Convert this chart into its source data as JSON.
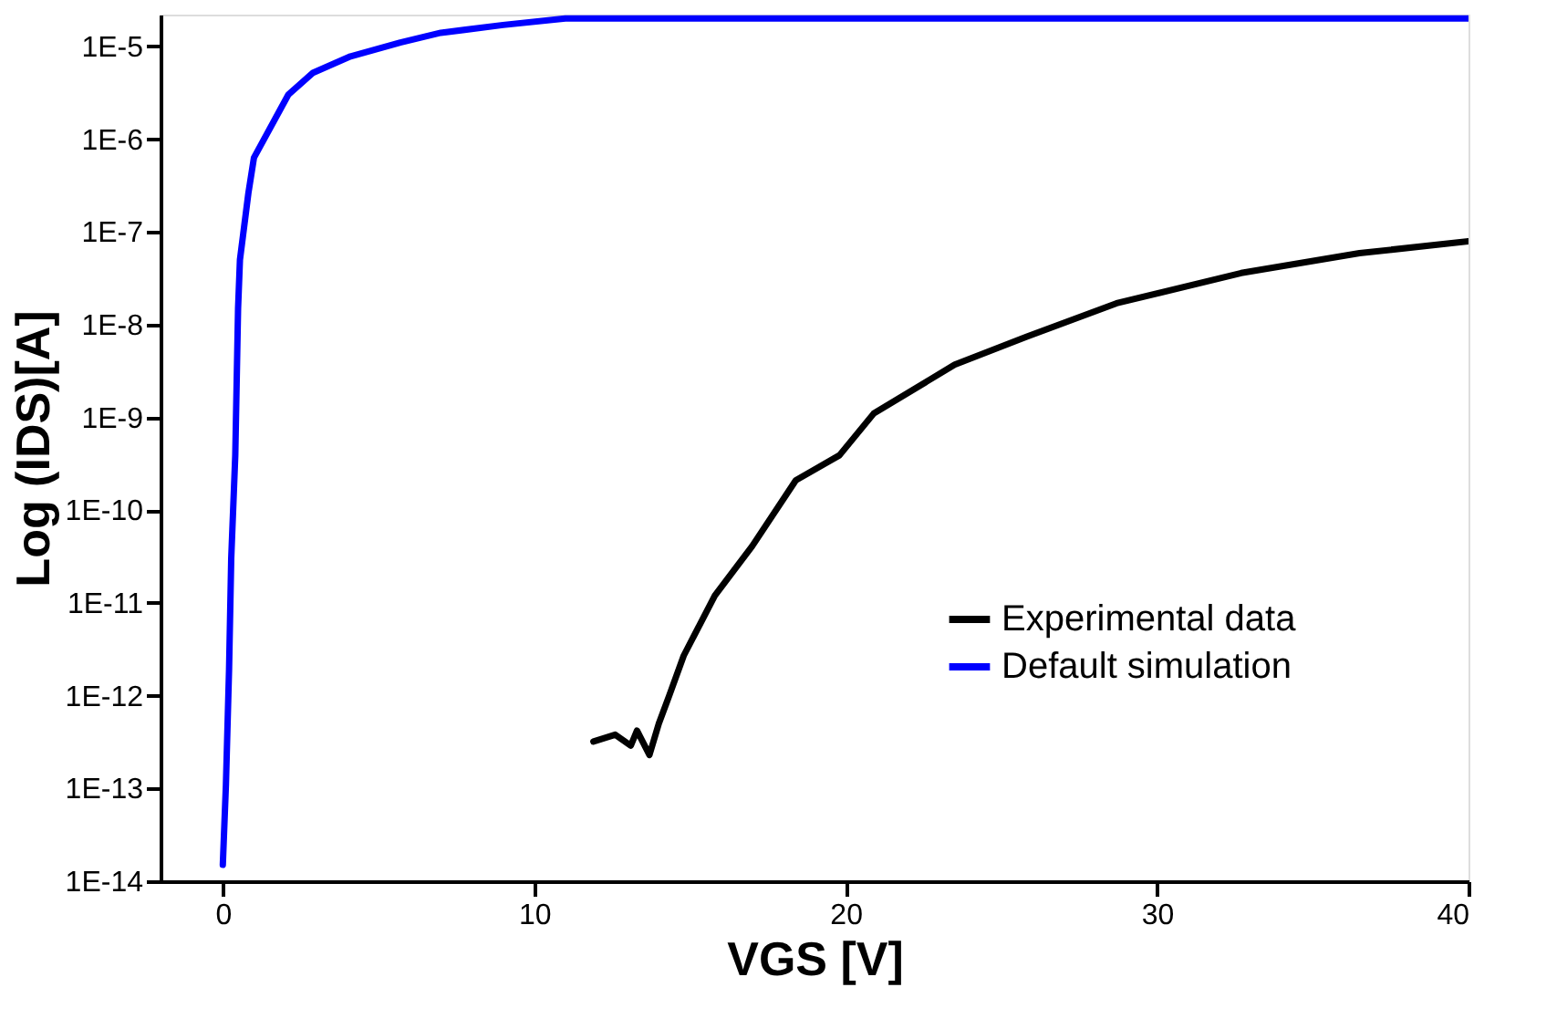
{
  "chart_data": {
    "type": "line",
    "xlabel": "VGS [V]",
    "ylabel": "Log (IDS)[A]",
    "log": "y",
    "grid": false,
    "legend": "bottom right",
    "line_style": "solid",
    "marker": "none",
    "xlim": [
      -2,
      40
    ],
    "xticks": [
      0,
      10,
      20,
      30,
      40
    ],
    "ylim": [
      1e-14,
      2.2e-05
    ],
    "yticks": [
      {
        "value": 1e-14,
        "label": "1E-14"
      },
      {
        "value": 1e-13,
        "label": "1E-13"
      },
      {
        "value": 1e-12,
        "label": "1E-12"
      },
      {
        "value": 1e-11,
        "label": "1E-11"
      },
      {
        "value": 1e-10,
        "label": "1E-10"
      },
      {
        "value": 1e-09,
        "label": "1E-9"
      },
      {
        "value": 1e-08,
        "label": "1E-8"
      },
      {
        "value": 1e-07,
        "label": "1E-7"
      },
      {
        "value": 1e-06,
        "label": "1E-6"
      },
      {
        "value": 1e-05,
        "label": "1E-5"
      }
    ],
    "series": [
      {
        "name": "Experimental data",
        "color": "#000000",
        "x": [
          11.9,
          12.6,
          13.1,
          13.3,
          13.7,
          14.0,
          14.3,
          14.8,
          15.8,
          17.0,
          18.4,
          19.8,
          20.9,
          23.5,
          25.8,
          28.7,
          32.7,
          36.5,
          40.0
        ],
        "values": [
          3.2e-13,
          3.8e-13,
          2.9e-13,
          4.2e-13,
          2.3e-13,
          5e-13,
          9.3e-13,
          2.7e-12,
          1.2e-11,
          4.1e-11,
          2.1e-10,
          3.9e-10,
          1.1e-09,
          3.7e-09,
          7.4e-09,
          1.7e-08,
          3.6e-08,
          5.9e-08,
          7.9e-08
        ]
      },
      {
        "name": "Default simulation",
        "color": "#0000ff",
        "x": [
          0.0,
          0.1,
          0.2,
          0.27,
          0.4,
          0.49,
          0.55,
          0.82,
          1.0,
          2.1,
          2.9,
          4.1,
          5.7,
          7.0,
          9.0,
          11.0,
          40.0
        ],
        "values": [
          1.5e-14,
          1.1e-13,
          1.9e-12,
          3e-11,
          3.9e-10,
          1.5e-08,
          5e-08,
          2.6e-07,
          6.3e-07,
          3e-06,
          5.2e-06,
          7.8e-06,
          1.1e-05,
          1.4e-05,
          1.7e-05,
          2e-05,
          2e-05
        ]
      }
    ]
  }
}
